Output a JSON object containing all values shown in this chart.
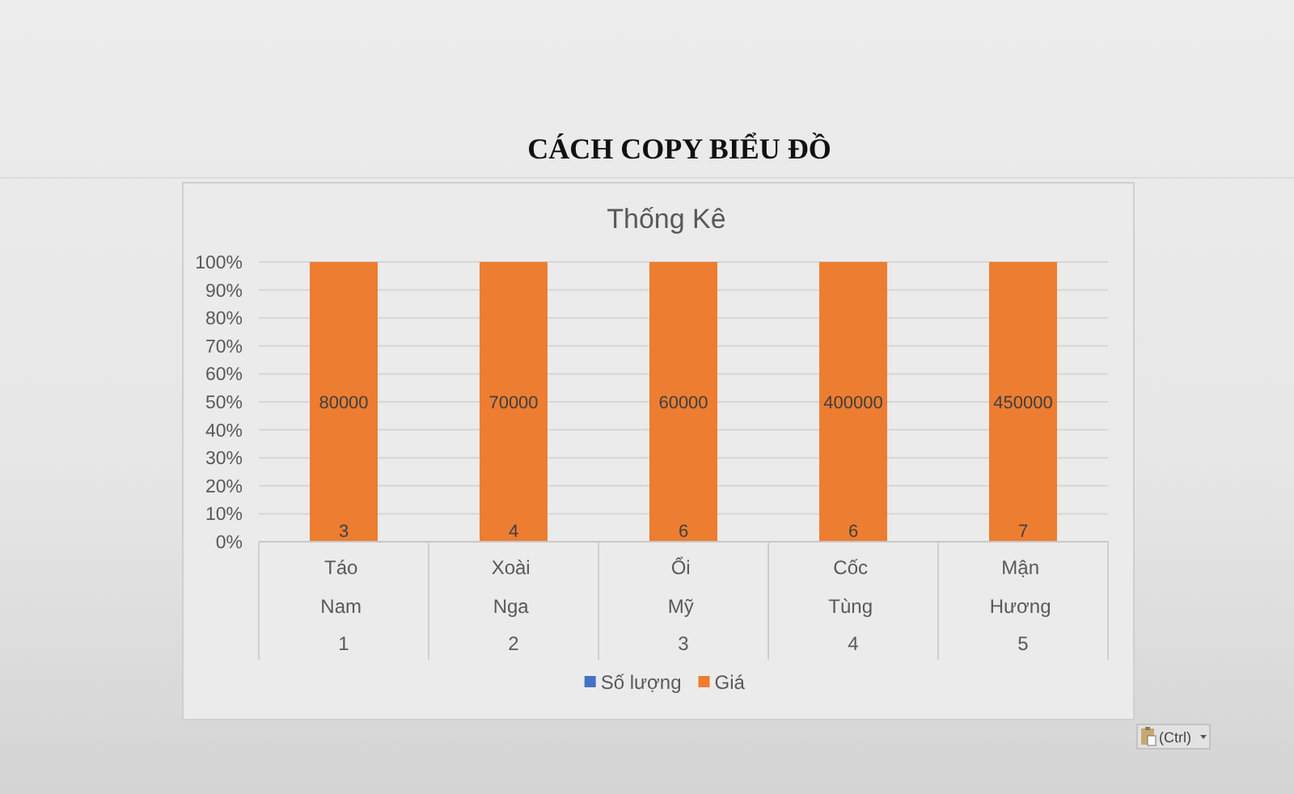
{
  "chart_data": {
    "type": "bar",
    "title": "CÁCH COPY BIỂU ĐỒ",
    "subtitle": "Thống Kê",
    "categories": [
      "Táo\nNam\n1",
      "Xoài\nNga\n2",
      "Ổi\nMỹ\n3",
      "Cốc\nTùng\n4",
      "Mận\nHương\n5"
    ],
    "stacked": true,
    "series": [
      {
        "name": "Số lượng",
        "color": "#4472c4",
        "values": [
          0,
          0,
          0,
          0,
          0
        ]
      },
      {
        "name": "Giá",
        "color": "#ed7d31",
        "values": [
          100,
          100,
          100,
          100,
          100
        ]
      }
    ],
    "ylim": [
      0,
      100
    ],
    "yticks": [
      {
        "value": 0,
        "label": "0%"
      },
      {
        "value": 10,
        "label": "10%"
      },
      {
        "value": 20,
        "label": "20%"
      },
      {
        "value": 30,
        "label": "30%"
      },
      {
        "value": 40,
        "label": "40%"
      },
      {
        "value": 50,
        "label": "50%"
      },
      {
        "value": 60,
        "label": "60%"
      },
      {
        "value": 70,
        "label": "70%"
      },
      {
        "value": 80,
        "label": "80%"
      },
      {
        "value": 90,
        "label": "90%"
      },
      {
        "value": 100,
        "label": "100%"
      }
    ],
    "grid": "y",
    "legend": "bottom",
    "annotations": [
      "80000",
      "70000",
      "60000",
      "400000",
      "450000",
      {
        "text": "3",
        "x": "Táo\nNam\n1",
        "y": 0
      },
      {
        "text": "4",
        "x": "Xoài\nNga\n2",
        "y": 0
      },
      {
        "text": "6",
        "x": "Ổi\nMỹ\n3",
        "y": 0
      },
      {
        "text": "6",
        "x": "Cốc\nTùng\n4",
        "y": 0
      },
      {
        "text": "7",
        "x": "Mận\nHương\n5",
        "y": 0
      },
      "(Ctrl)"
    ]
  }
}
